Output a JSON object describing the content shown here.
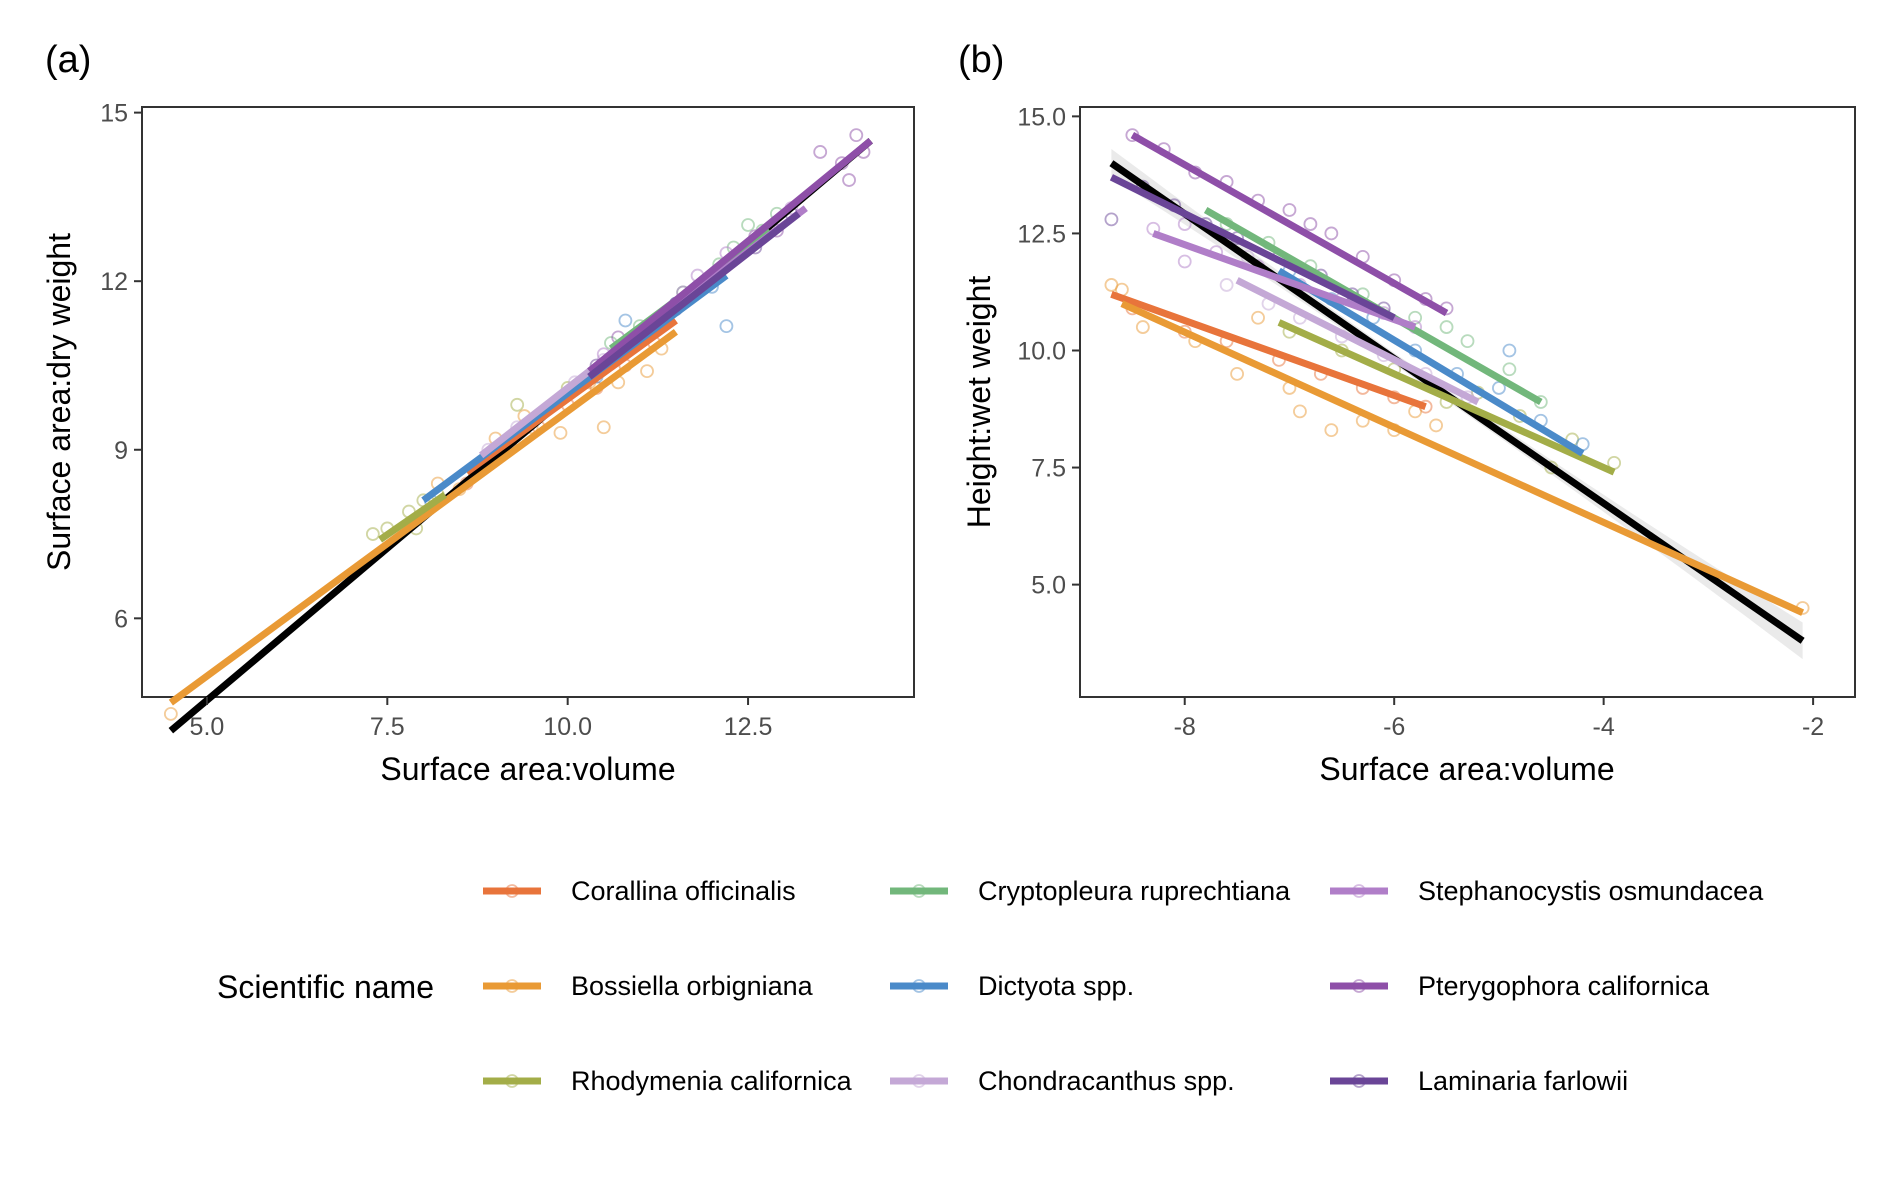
{
  "figure": {
    "legend_title": "Scientific name"
  },
  "species": [
    {
      "name": "Corallina officinalis",
      "color": "#E8743B"
    },
    {
      "name": "Bossiella orbigniana",
      "color": "#E99A35"
    },
    {
      "name": "Rhodymenia californica",
      "color": "#A3AD48"
    },
    {
      "name": "Cryptopleura ruprechtiana",
      "color": "#72B77B"
    },
    {
      "name": "Dictyota spp.",
      "color": "#4A8AC9"
    },
    {
      "name": "Chondracanthus spp.",
      "color": "#C4A8D6"
    },
    {
      "name": "Stephanocystis osmundacea",
      "color": "#B07EC8"
    },
    {
      "name": "Pterygophora californica",
      "color": "#8E4FA8"
    },
    {
      "name": "Laminaria farlowii",
      "color": "#6A4597"
    }
  ],
  "chart_data": [
    {
      "type": "scatter",
      "panel_label": "(a)",
      "xlabel": "Surface area:volume",
      "ylabel": "Surface area:dry weight",
      "xlim": [
        4.1,
        14.8
      ],
      "ylim": [
        4.6,
        15.1
      ],
      "xticks": [
        5.0,
        7.5,
        10.0,
        12.5
      ],
      "xtick_labels": [
        "5.0",
        "7.5",
        "10.0",
        "12.5"
      ],
      "yticks": [
        6,
        9,
        12,
        15
      ],
      "ytick_labels": [
        "6",
        "9",
        "12",
        "15"
      ],
      "overall_fit": {
        "x": [
          4.5,
          14.2
        ],
        "y": [
          4.0,
          14.5
        ],
        "color": "#000000"
      },
      "series": [
        {
          "name": "Corallina officinalis",
          "fit": {
            "x": [
              8.6,
              11.5
            ],
            "y": [
              8.6,
              11.3
            ]
          },
          "points": [
            [
              8.6,
              8.4
            ],
            [
              8.9,
              8.8
            ],
            [
              9.2,
              9.1
            ],
            [
              9.6,
              9.4
            ],
            [
              10.0,
              9.8
            ],
            [
              10.4,
              10.1
            ],
            [
              10.8,
              10.5
            ],
            [
              11.2,
              10.9
            ]
          ]
        },
        {
          "name": "Bossiella orbigniana",
          "fit": {
            "x": [
              4.5,
              11.5
            ],
            "y": [
              4.5,
              11.1
            ]
          },
          "points": [
            [
              4.5,
              4.3
            ],
            [
              8.2,
              8.4
            ],
            [
              8.5,
              8.3
            ],
            [
              9.0,
              9.2
            ],
            [
              9.5,
              9.4
            ],
            [
              9.9,
              9.3
            ],
            [
              10.3,
              10.2
            ],
            [
              10.5,
              9.4
            ],
            [
              10.7,
              10.2
            ],
            [
              11.1,
              10.4
            ],
            [
              11.3,
              10.8
            ],
            [
              9.4,
              9.6
            ]
          ]
        },
        {
          "name": "Rhodymenia californica",
          "fit": {
            "x": [
              7.4,
              8.3
            ],
            "y": [
              7.4,
              8.2
            ]
          },
          "points": [
            [
              7.3,
              7.5
            ],
            [
              7.5,
              7.6
            ],
            [
              7.8,
              7.9
            ],
            [
              8.0,
              8.1
            ],
            [
              7.9,
              7.6
            ],
            [
              8.2,
              8.2
            ],
            [
              9.3,
              9.8
            ],
            [
              10.0,
              10.1
            ]
          ]
        },
        {
          "name": "Cryptopleura ruprechtiana",
          "fit": {
            "x": [
              10.6,
              12.8
            ],
            "y": [
              10.8,
              12.9
            ]
          },
          "points": [
            [
              10.6,
              10.9
            ],
            [
              11.0,
              11.2
            ],
            [
              11.6,
              11.8
            ],
            [
              12.1,
              12.3
            ],
            [
              12.7,
              12.9
            ],
            [
              12.5,
              13.0
            ],
            [
              12.9,
              13.2
            ],
            [
              12.3,
              12.6
            ]
          ]
        },
        {
          "name": "Dictyota spp.",
          "fit": {
            "x": [
              8.0,
              12.2
            ],
            "y": [
              8.1,
              12.1
            ]
          },
          "points": [
            [
              8.1,
              8.1
            ],
            [
              9.2,
              9.2
            ],
            [
              10.4,
              10.3
            ],
            [
              10.8,
              11.3
            ],
            [
              11.5,
              11.6
            ],
            [
              12.0,
              11.9
            ],
            [
              12.2,
              11.2
            ],
            [
              11.8,
              11.9
            ]
          ]
        },
        {
          "name": "Chondracanthus spp.",
          "fit": {
            "x": [
              8.8,
              10.6
            ],
            "y": [
              8.9,
              10.7
            ]
          },
          "points": [
            [
              8.9,
              9.0
            ],
            [
              9.3,
              9.4
            ],
            [
              9.7,
              9.7
            ],
            [
              10.1,
              10.2
            ],
            [
              10.5,
              10.6
            ],
            [
              9.5,
              9.5
            ],
            [
              10.8,
              10.9
            ]
          ]
        },
        {
          "name": "Stephanocystis osmundacea",
          "fit": {
            "x": [
              10.4,
              13.3
            ],
            "y": [
              10.5,
              13.3
            ]
          },
          "points": [
            [
              10.5,
              10.7
            ],
            [
              11.0,
              11.1
            ],
            [
              11.6,
              11.8
            ],
            [
              12.2,
              12.5
            ],
            [
              12.8,
              12.9
            ],
            [
              13.1,
              13.3
            ],
            [
              11.8,
              12.1
            ]
          ]
        },
        {
          "name": "Pterygophora californica",
          "fit": {
            "x": [
              10.3,
              14.2
            ],
            "y": [
              10.4,
              14.5
            ]
          },
          "points": [
            [
              10.7,
              11.0
            ],
            [
              11.5,
              11.5
            ],
            [
              12.0,
              12.0
            ],
            [
              12.9,
              12.9
            ],
            [
              13.5,
              14.3
            ],
            [
              13.8,
              14.1
            ],
            [
              14.0,
              14.6
            ],
            [
              14.1,
              14.3
            ],
            [
              13.9,
              13.8
            ],
            [
              12.6,
              12.8
            ]
          ]
        },
        {
          "name": "Laminaria farlowii",
          "fit": {
            "x": [
              10.3,
              13.2
            ],
            "y": [
              10.3,
              13.2
            ]
          },
          "points": [
            [
              10.4,
              10.5
            ],
            [
              10.9,
              11.0
            ],
            [
              11.5,
              11.6
            ],
            [
              12.0,
              12.0
            ],
            [
              12.6,
              12.6
            ],
            [
              13.1,
              13.2
            ]
          ]
        }
      ]
    },
    {
      "type": "scatter",
      "panel_label": "(b)",
      "xlabel": "Surface area:volume",
      "ylabel": "Height:wet weight",
      "xlim": [
        -9.0,
        -1.6
      ],
      "ylim": [
        2.6,
        15.2
      ],
      "xticks": [
        -8,
        -6,
        -4,
        -2
      ],
      "xtick_labels": [
        "-8",
        "-6",
        "-4",
        "-2"
      ],
      "yticks": [
        5.0,
        7.5,
        10.0,
        12.5,
        15.0
      ],
      "ytick_labels": [
        "5.0",
        "7.5",
        "10.0",
        "12.5",
        "15.0"
      ],
      "overall_fit": {
        "x": [
          -8.7,
          -2.1
        ],
        "y": [
          14.0,
          3.8
        ],
        "color": "#000000",
        "confidence_band": true
      },
      "series": [
        {
          "name": "Corallina officinalis",
          "fit": {
            "x": [
              -8.7,
              -5.7
            ],
            "y": [
              11.2,
              8.8
            ]
          },
          "points": [
            [
              -8.5,
              10.9
            ],
            [
              -8.0,
              10.4
            ],
            [
              -7.6,
              10.2
            ],
            [
              -7.1,
              9.8
            ],
            [
              -6.7,
              9.5
            ],
            [
              -6.3,
              9.2
            ],
            [
              -6.0,
              9.0
            ],
            [
              -5.7,
              8.8
            ]
          ]
        },
        {
          "name": "Bossiella orbigniana",
          "fit": {
            "x": [
              -8.6,
              -2.1
            ],
            "y": [
              11.0,
              4.4
            ]
          },
          "points": [
            [
              -8.7,
              11.4
            ],
            [
              -8.6,
              11.3
            ],
            [
              -8.4,
              10.5
            ],
            [
              -7.9,
              10.2
            ],
            [
              -7.5,
              9.5
            ],
            [
              -7.3,
              10.7
            ],
            [
              -7.0,
              9.2
            ],
            [
              -6.9,
              8.7
            ],
            [
              -6.6,
              8.3
            ],
            [
              -6.3,
              8.5
            ],
            [
              -6.0,
              8.3
            ],
            [
              -5.8,
              8.7
            ],
            [
              -5.6,
              8.4
            ],
            [
              -2.1,
              4.5
            ]
          ]
        },
        {
          "name": "Rhodymenia californica",
          "fit": {
            "x": [
              -7.1,
              -3.9
            ],
            "y": [
              10.6,
              7.4
            ]
          },
          "points": [
            [
              -7.0,
              10.4
            ],
            [
              -6.5,
              10.0
            ],
            [
              -6.0,
              9.6
            ],
            [
              -5.5,
              8.9
            ],
            [
              -5.2,
              9.1
            ],
            [
              -4.8,
              8.6
            ],
            [
              -4.5,
              7.5
            ],
            [
              -3.9,
              7.6
            ],
            [
              -4.3,
              8.1
            ]
          ]
        },
        {
          "name": "Cryptopleura ruprechtiana",
          "fit": {
            "x": [
              -7.8,
              -4.6
            ],
            "y": [
              13.0,
              8.9
            ]
          },
          "points": [
            [
              -7.6,
              12.7
            ],
            [
              -7.2,
              12.3
            ],
            [
              -6.8,
              11.8
            ],
            [
              -6.3,
              11.2
            ],
            [
              -5.8,
              10.7
            ],
            [
              -5.3,
              10.2
            ],
            [
              -4.9,
              9.6
            ],
            [
              -4.6,
              8.9
            ],
            [
              -5.5,
              10.5
            ]
          ]
        },
        {
          "name": "Dictyota spp.",
          "fit": {
            "x": [
              -7.1,
              -4.2
            ],
            "y": [
              11.7,
              7.8
            ]
          },
          "points": [
            [
              -7.0,
              11.7
            ],
            [
              -6.6,
              11.1
            ],
            [
              -6.2,
              10.7
            ],
            [
              -5.8,
              10.0
            ],
            [
              -5.4,
              9.5
            ],
            [
              -5.0,
              9.2
            ],
            [
              -4.6,
              8.5
            ],
            [
              -4.2,
              8.0
            ],
            [
              -4.9,
              10.0
            ]
          ]
        },
        {
          "name": "Chondracanthus spp.",
          "fit": {
            "x": [
              -7.5,
              -5.2
            ],
            "y": [
              11.5,
              8.9
            ]
          },
          "points": [
            [
              -7.6,
              11.4
            ],
            [
              -7.2,
              11.0
            ],
            [
              -6.9,
              10.7
            ],
            [
              -6.5,
              10.3
            ],
            [
              -6.1,
              9.9
            ],
            [
              -5.7,
              9.5
            ],
            [
              -5.3,
              9.0
            ],
            [
              -7.4,
              12.0
            ]
          ]
        },
        {
          "name": "Stephanocystis osmundacea",
          "fit": {
            "x": [
              -8.3,
              -5.8
            ],
            "y": [
              12.5,
              10.5
            ]
          },
          "points": [
            [
              -8.3,
              12.6
            ],
            [
              -8.0,
              11.9
            ],
            [
              -7.7,
              12.1
            ],
            [
              -7.3,
              11.8
            ],
            [
              -6.9,
              11.4
            ],
            [
              -6.5,
              11.1
            ],
            [
              -6.1,
              10.8
            ],
            [
              -5.8,
              10.5
            ],
            [
              -8.0,
              12.7
            ]
          ]
        },
        {
          "name": "Pterygophora californica",
          "fit": {
            "x": [
              -8.5,
              -5.5
            ],
            "y": [
              14.6,
              10.8
            ]
          },
          "points": [
            [
              -8.5,
              14.6
            ],
            [
              -8.2,
              14.3
            ],
            [
              -7.9,
              13.8
            ],
            [
              -7.6,
              13.6
            ],
            [
              -7.3,
              13.2
            ],
            [
              -7.0,
              13.0
            ],
            [
              -6.8,
              12.7
            ],
            [
              -6.6,
              12.5
            ],
            [
              -6.3,
              12.0
            ],
            [
              -6.0,
              11.5
            ],
            [
              -5.7,
              11.1
            ],
            [
              -5.5,
              10.9
            ]
          ]
        },
        {
          "name": "Laminaria farlowii",
          "fit": {
            "x": [
              -8.7,
              -6.0
            ],
            "y": [
              13.7,
              10.7
            ]
          },
          "points": [
            [
              -8.7,
              12.8
            ],
            [
              -8.4,
              13.5
            ],
            [
              -8.1,
              13.1
            ],
            [
              -7.8,
              12.7
            ],
            [
              -7.5,
              12.4
            ],
            [
              -7.1,
              12.0
            ],
            [
              -6.7,
              11.6
            ],
            [
              -6.4,
              11.2
            ],
            [
              -6.1,
              10.9
            ]
          ]
        }
      ]
    }
  ]
}
